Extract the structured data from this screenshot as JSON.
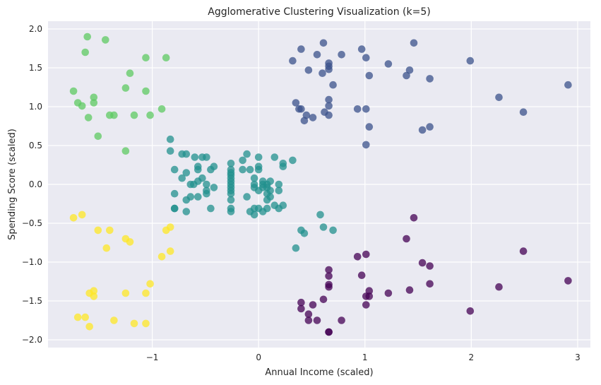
{
  "chart_data": {
    "type": "scatter",
    "title": "Agglomerative Clustering Visualization (k=5)",
    "xlabel": "Annual Income (scaled)",
    "ylabel": "Spending Score (scaled)",
    "xlim": [
      -1.98,
      3.12
    ],
    "ylim": [
      -2.1,
      2.1
    ],
    "x_ticks": [
      -1,
      0,
      1,
      2,
      3
    ],
    "y_ticks": [
      -2.0,
      -1.5,
      -1.0,
      -0.5,
      0.0,
      0.5,
      1.0,
      1.5,
      2.0
    ],
    "x_tick_labels": [
      "−1",
      "0",
      "1",
      "2",
      "3"
    ],
    "y_tick_labels": [
      "−2.0",
      "−1.5",
      "−1.0",
      "−0.5",
      "0.0",
      "0.5",
      "1.0",
      "1.5",
      "2.0"
    ],
    "grid": true,
    "background": "#eaeaf2",
    "grid_color": "#ffffff",
    "marker_opacity": 0.75,
    "series": [
      {
        "color": "#440154",
        "points": [
          [
            1.46,
            -0.43
          ],
          [
            1.39,
            -0.7
          ],
          [
            2.49,
            -0.86
          ],
          [
            0.93,
            -0.93
          ],
          [
            1.01,
            -0.9
          ],
          [
            1.54,
            -1.01
          ],
          [
            1.61,
            -1.05
          ],
          [
            0.97,
            -1.17
          ],
          [
            0.66,
            -1.1
          ],
          [
            0.66,
            -1.18
          ],
          [
            0.66,
            -1.29
          ],
          [
            0.66,
            -1.32
          ],
          [
            1.61,
            -1.28
          ],
          [
            2.91,
            -1.24
          ],
          [
            2.26,
            -1.32
          ],
          [
            1.04,
            -1.37
          ],
          [
            1.22,
            -1.4
          ],
          [
            1.42,
            -1.36
          ],
          [
            1.01,
            -1.44
          ],
          [
            1.04,
            -1.44
          ],
          [
            1.01,
            -1.55
          ],
          [
            0.4,
            -1.52
          ],
          [
            0.4,
            -1.6
          ],
          [
            0.61,
            -1.48
          ],
          [
            0.47,
            -1.67
          ],
          [
            0.51,
            -1.55
          ],
          [
            0.47,
            -1.75
          ],
          [
            0.55,
            -1.75
          ],
          [
            0.78,
            -1.75
          ],
          [
            1.99,
            -1.63
          ],
          [
            0.66,
            -1.9
          ],
          [
            0.66,
            -1.9
          ]
        ]
      },
      {
        "color": "#3b528b",
        "points": [
          [
            0.32,
            1.59
          ],
          [
            0.4,
            1.74
          ],
          [
            0.47,
            1.47
          ],
          [
            0.55,
            1.67
          ],
          [
            0.61,
            1.82
          ],
          [
            0.66,
            1.56
          ],
          [
            0.66,
            1.52
          ],
          [
            0.66,
            1.48
          ],
          [
            0.6,
            1.43
          ],
          [
            0.7,
            1.28
          ],
          [
            0.78,
            1.67
          ],
          [
            0.97,
            1.74
          ],
          [
            1.01,
            1.63
          ],
          [
            1.04,
            1.4
          ],
          [
            1.22,
            1.55
          ],
          [
            1.39,
            1.4
          ],
          [
            1.42,
            1.47
          ],
          [
            1.46,
            1.82
          ],
          [
            1.61,
            1.36
          ],
          [
            1.99,
            1.59
          ],
          [
            2.26,
            1.12
          ],
          [
            2.49,
            0.93
          ],
          [
            2.91,
            1.28
          ],
          [
            0.35,
            1.05
          ],
          [
            0.38,
            0.97
          ],
          [
            0.4,
            0.97
          ],
          [
            0.43,
            0.82
          ],
          [
            0.45,
            0.89
          ],
          [
            0.51,
            0.86
          ],
          [
            0.62,
            0.93
          ],
          [
            0.66,
            0.89
          ],
          [
            0.66,
            1.01
          ],
          [
            0.66,
            1.09
          ],
          [
            0.93,
            0.97
          ],
          [
            1.01,
            0.97
          ],
          [
            1.04,
            0.74
          ],
          [
            1.01,
            0.51
          ],
          [
            1.54,
            0.7
          ],
          [
            1.61,
            0.74
          ]
        ]
      },
      {
        "color": "#21908d",
        "points": [
          [
            -0.83,
            0.58
          ],
          [
            -0.83,
            0.43
          ],
          [
            -0.79,
            0.19
          ],
          [
            -0.72,
            0.39
          ],
          [
            -0.68,
            0.39
          ],
          [
            -0.72,
            0.08
          ],
          [
            -0.68,
            0.15
          ],
          [
            -0.64,
            0.0
          ],
          [
            -0.64,
            -0.16
          ],
          [
            -0.68,
            -0.2
          ],
          [
            -0.68,
            -0.35
          ],
          [
            -0.79,
            -0.12
          ],
          [
            -0.79,
            -0.31
          ],
          [
            -0.79,
            -0.31
          ],
          [
            -0.57,
            0.19
          ],
          [
            -0.57,
            0.23
          ],
          [
            -0.57,
            0.04
          ],
          [
            -0.53,
            0.35
          ],
          [
            -0.49,
            0.35
          ],
          [
            -0.53,
            0.08
          ],
          [
            -0.49,
            0.0
          ],
          [
            -0.49,
            -0.08
          ],
          [
            -0.49,
            -0.12
          ],
          [
            -0.57,
            -0.16
          ],
          [
            -0.45,
            0.19
          ],
          [
            -0.42,
            0.23
          ],
          [
            -0.42,
            -0.04
          ],
          [
            -0.45,
            -0.31
          ],
          [
            -0.6,
            0.35
          ],
          [
            -0.61,
            0.0
          ],
          [
            -0.26,
            0.27
          ],
          [
            -0.26,
            0.19
          ],
          [
            -0.26,
            0.15
          ],
          [
            -0.26,
            0.12
          ],
          [
            -0.26,
            0.08
          ],
          [
            -0.26,
            0.04
          ],
          [
            -0.26,
            0.0
          ],
          [
            -0.26,
            -0.04
          ],
          [
            -0.26,
            -0.08
          ],
          [
            -0.26,
            -0.12
          ],
          [
            -0.26,
            -0.2
          ],
          [
            -0.26,
            -0.31
          ],
          [
            -0.26,
            -0.35
          ],
          [
            -0.15,
            0.31
          ],
          [
            -0.15,
            0.19
          ],
          [
            -0.11,
            0.39
          ],
          [
            -0.11,
            -0.16
          ],
          [
            -0.08,
            0.19
          ],
          [
            -0.08,
            -0.35
          ],
          [
            -0.04,
            -0.39
          ],
          [
            -0.04,
            -0.31
          ],
          [
            -0.04,
            0.08
          ],
          [
            -0.04,
            0.0
          ],
          [
            -0.04,
            -0.04
          ],
          [
            0.0,
            0.35
          ],
          [
            0.0,
            0.23
          ],
          [
            0.0,
            0.19
          ],
          [
            0.0,
            -0.08
          ],
          [
            0.0,
            -0.31
          ],
          [
            0.04,
            -0.35
          ],
          [
            0.04,
            0.04
          ],
          [
            0.04,
            0.0
          ],
          [
            0.04,
            -0.04
          ],
          [
            0.08,
            0.0
          ],
          [
            0.08,
            -0.04
          ],
          [
            0.08,
            -0.12
          ],
          [
            0.08,
            -0.2
          ],
          [
            0.08,
            -0.31
          ],
          [
            0.11,
            0.04
          ],
          [
            0.11,
            -0.08
          ],
          [
            0.11,
            -0.16
          ],
          [
            0.15,
            0.35
          ],
          [
            0.15,
            -0.27
          ],
          [
            0.19,
            -0.31
          ],
          [
            0.19,
            -0.08
          ],
          [
            0.19,
            0.0
          ],
          [
            0.23,
            0.23
          ],
          [
            0.23,
            0.27
          ],
          [
            0.23,
            -0.27
          ],
          [
            0.32,
            0.31
          ],
          [
            0.35,
            -0.82
          ],
          [
            0.4,
            -0.59
          ],
          [
            0.43,
            -0.63
          ],
          [
            0.58,
            -0.39
          ],
          [
            0.61,
            -0.55
          ],
          [
            0.7,
            -0.59
          ]
        ]
      },
      {
        "color": "#5ec962",
        "points": [
          [
            -1.61,
            1.9
          ],
          [
            -1.44,
            1.86
          ],
          [
            -1.63,
            1.7
          ],
          [
            -1.06,
            1.63
          ],
          [
            -0.87,
            1.63
          ],
          [
            -1.21,
            1.43
          ],
          [
            -1.74,
            1.2
          ],
          [
            -1.55,
            1.12
          ],
          [
            -1.25,
            1.24
          ],
          [
            -1.06,
            1.2
          ],
          [
            -1.7,
            1.05
          ],
          [
            -1.66,
            1.01
          ],
          [
            -1.55,
            1.05
          ],
          [
            -1.6,
            0.86
          ],
          [
            -1.4,
            0.89
          ],
          [
            -1.36,
            0.89
          ],
          [
            -1.17,
            0.89
          ],
          [
            -1.02,
            0.89
          ],
          [
            -0.91,
            0.97
          ],
          [
            -1.51,
            0.62
          ],
          [
            -1.25,
            0.43
          ]
        ]
      },
      {
        "color": "#fde725",
        "points": [
          [
            -1.74,
            -0.43
          ],
          [
            -1.66,
            -0.39
          ],
          [
            -1.51,
            -0.59
          ],
          [
            -1.4,
            -0.59
          ],
          [
            -1.25,
            -0.7
          ],
          [
            -1.21,
            -0.74
          ],
          [
            -1.43,
            -0.82
          ],
          [
            -0.87,
            -0.59
          ],
          [
            -0.83,
            -0.55
          ],
          [
            -0.83,
            -0.86
          ],
          [
            -0.91,
            -0.93
          ],
          [
            -1.02,
            -1.28
          ],
          [
            -1.06,
            -1.4
          ],
          [
            -1.25,
            -1.4
          ],
          [
            -1.55,
            -1.37
          ],
          [
            -1.59,
            -1.4
          ],
          [
            -1.55,
            -1.44
          ],
          [
            -1.7,
            -1.71
          ],
          [
            -1.63,
            -1.71
          ],
          [
            -1.59,
            -1.83
          ],
          [
            -1.36,
            -1.75
          ],
          [
            -1.17,
            -1.79
          ],
          [
            -1.06,
            -1.79
          ]
        ]
      }
    ]
  }
}
